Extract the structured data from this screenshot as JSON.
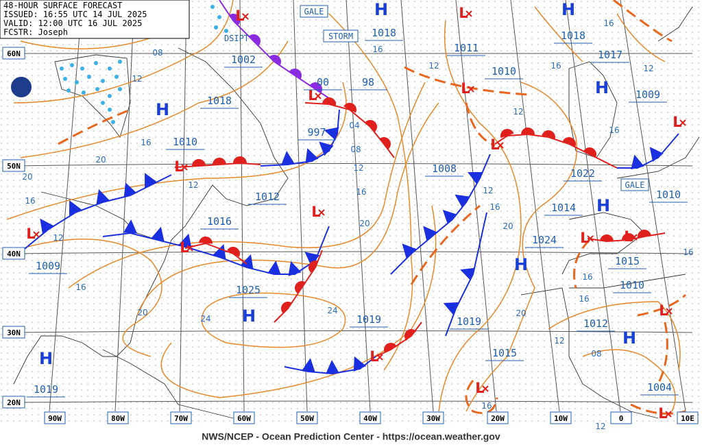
{
  "header": {
    "lines": [
      "48-HOUR SURFACE FORECAST",
      "ISSUED: 16:55 UTC 14 JUL 2025",
      "VALID: 12:00 UTC 16 JUL 2025",
      "FCSTR: Joseph"
    ]
  },
  "latitude_labels": [
    "60N",
    "50N",
    "40N",
    "30N",
    "20N"
  ],
  "longitude_labels": [
    "90W",
    "80W",
    "70W",
    "60W",
    "50W",
    "40W",
    "30W",
    "20W",
    "10W",
    "0",
    "10E"
  ],
  "warnings": [
    "GALE",
    "STORM",
    "GALE"
  ],
  "dissipating": "DSIPT",
  "highs": [
    "H",
    "H",
    "H",
    "H",
    "H",
    "H",
    "H",
    "H",
    "H"
  ],
  "lows": [
    "L",
    "L",
    "L",
    "L",
    "L",
    "L",
    "L",
    "L",
    "L",
    "L",
    "L",
    "L",
    "L",
    "L",
    "L",
    "L"
  ],
  "pressure_labels": [
    "1018",
    "1011",
    "1018",
    "1017",
    "1002",
    "98",
    "1010",
    "1009",
    "1018",
    "997",
    "1010",
    "1008",
    "1022",
    "1012",
    "1010",
    "1016",
    "1014",
    "1024",
    "1015",
    "1009",
    "1010",
    "1025",
    "1019",
    "1019",
    "1012",
    "1015",
    "1004",
    "1019",
    "00"
  ],
  "isobar_labels": [
    "08",
    "12",
    "16",
    "20",
    "20",
    "16",
    "12",
    "16",
    "20",
    "24",
    "24",
    "16",
    "12",
    "04",
    "08",
    "12",
    "16",
    "20",
    "12",
    "12",
    "16",
    "20",
    "20",
    "16",
    "12",
    "16",
    "12",
    "16",
    "16",
    "16",
    "16",
    "12",
    "08",
    "16",
    "12"
  ],
  "footer": "NWS/NCEP - Ocean Prediction Center - https://ocean.weather.gov"
}
